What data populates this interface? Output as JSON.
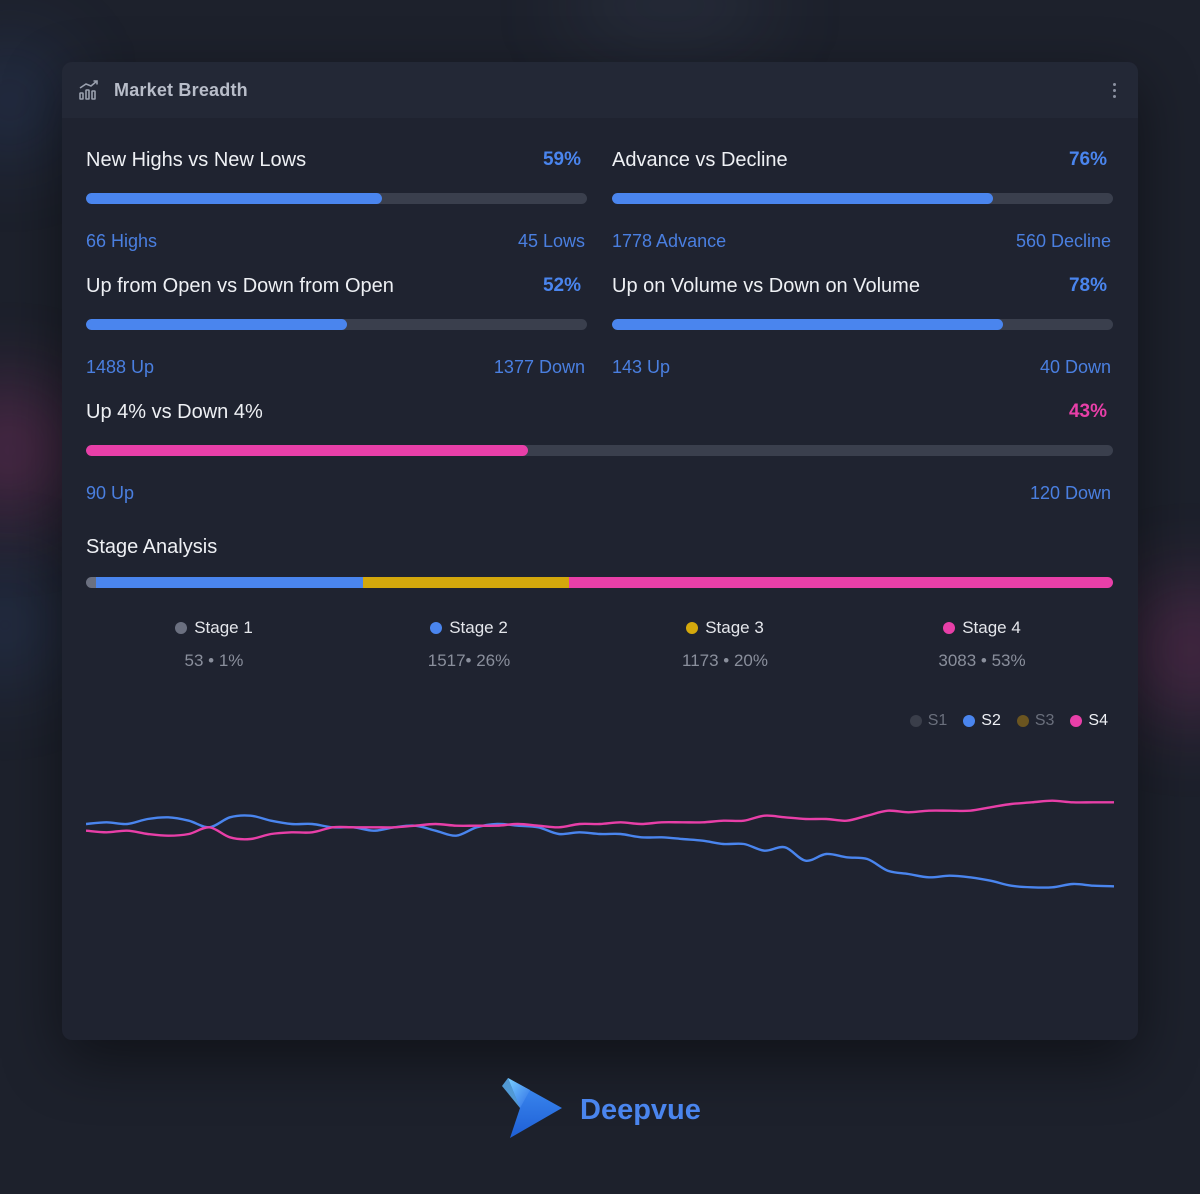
{
  "panel": {
    "title": "Market Breadth",
    "icon": "bar-chart-trend-icon",
    "menu_icon": "kebab-menu-icon"
  },
  "metrics": [
    {
      "label": "New Highs vs New Lows",
      "percent": "59%",
      "fill": 0.59,
      "left": "66 Highs",
      "right": "45 Lows",
      "color": "#4a85ee"
    },
    {
      "label": "Advance vs Decline",
      "percent": "76%",
      "fill": 0.76,
      "left": "1778 Advance",
      "right": "560 Decline",
      "color": "#4a85ee"
    },
    {
      "label": "Up from Open vs Down from Open",
      "percent": "52%",
      "fill": 0.52,
      "left": "1488 Up",
      "right": "1377 Down",
      "color": "#4a85ee"
    },
    {
      "label": "Up on Volume vs Down on Volume",
      "percent": "78%",
      "fill": 0.78,
      "left": "143 Up",
      "right": "40 Down",
      "color": "#4a85ee"
    },
    {
      "label": "Up 4% vs Down 4%",
      "percent": "43%",
      "fill": 0.43,
      "left": "90 Up",
      "right": "120 Down",
      "color": "#e83fa8"
    }
  ],
  "stage_analysis": {
    "title": "Stage Analysis",
    "stages": [
      {
        "name": "Stage 1",
        "value": "53 • 1%",
        "share": 1,
        "color": "#6b7080"
      },
      {
        "name": "Stage 2",
        "value": "1517• 26%",
        "share": 26,
        "color": "#4a85ee"
      },
      {
        "name": "Stage 3",
        "value": "1173 • 20%",
        "share": 20,
        "color": "#d4a80c"
      },
      {
        "name": "Stage 4",
        "value": "3083  • 53%",
        "share": 53,
        "color": "#e83fa8"
      }
    ]
  },
  "chart_legend": [
    {
      "label": "S1",
      "active": false,
      "color": "#3a3e4a",
      "text_color": "#6a6f7c"
    },
    {
      "label": "S2",
      "active": true,
      "color": "#4a85ee",
      "text_color": "#eef0f4"
    },
    {
      "label": "S3",
      "active": false,
      "color": "#6b5520",
      "text_color": "#6a6f7c"
    },
    {
      "label": "S4",
      "active": true,
      "color": "#e83fa8",
      "text_color": "#eef0f4"
    }
  ],
  "chart_data": {
    "type": "line",
    "ylim": [
      0,
      60
    ],
    "series": [
      {
        "name": "S2",
        "color": "#4a85ee",
        "values": [
          36,
          36.5,
          36,
          37.5,
          38,
          37,
          35,
          38,
          38.5,
          37,
          36,
          36,
          35,
          35,
          34,
          35,
          35.5,
          34,
          32.5,
          35,
          36,
          35.5,
          35,
          33,
          33.5,
          33,
          33,
          32,
          32,
          31.5,
          31,
          30,
          30,
          28,
          29,
          25,
          27,
          26,
          25.5,
          22,
          21,
          20,
          20.5,
          20,
          19,
          17.5,
          17,
          17,
          18,
          17.5,
          17.3
        ]
      },
      {
        "name": "S4",
        "color": "#e83fa8",
        "values": [
          34,
          33.5,
          34,
          33,
          32.5,
          33,
          35,
          32,
          31.5,
          33,
          33.5,
          33.5,
          35,
          35,
          35,
          35,
          35.5,
          36,
          35.5,
          35.5,
          35.5,
          36,
          35.5,
          35,
          36,
          36,
          36.5,
          36,
          36.5,
          36.5,
          36.5,
          37,
          37,
          38.5,
          38,
          37.5,
          37.5,
          37,
          38.5,
          40,
          39.5,
          40,
          40,
          40,
          41,
          42,
          42.5,
          43,
          42.5,
          42.5,
          42.5
        ]
      }
    ]
  },
  "brand": {
    "name": "Deepvue",
    "icon": "deepvue-logo-icon"
  }
}
